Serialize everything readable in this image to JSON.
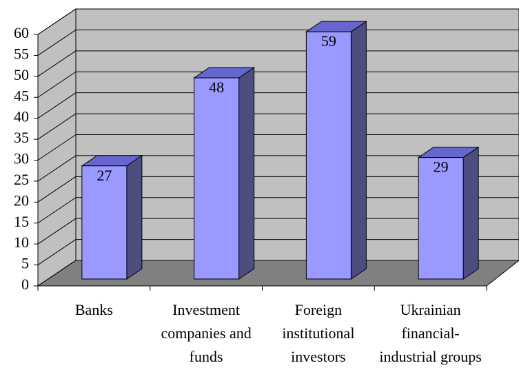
{
  "chart_data": {
    "type": "bar3d",
    "categories": [
      "Banks",
      "Investment companies and funds",
      "Foreign institutional investors",
      "Ukrainian financial-industrial groups"
    ],
    "values": [
      27,
      48,
      59,
      29
    ],
    "color": "#9999ff",
    "side_color": "#4d4d80",
    "top_color": "#6666cc",
    "wall_color": "#c0c0c0",
    "floor_color": "#808080",
    "ylim": [
      0,
      60
    ],
    "yticks": [
      0,
      5,
      10,
      15,
      20,
      25,
      30,
      35,
      40,
      45,
      50,
      55,
      60
    ],
    "grid": true
  }
}
